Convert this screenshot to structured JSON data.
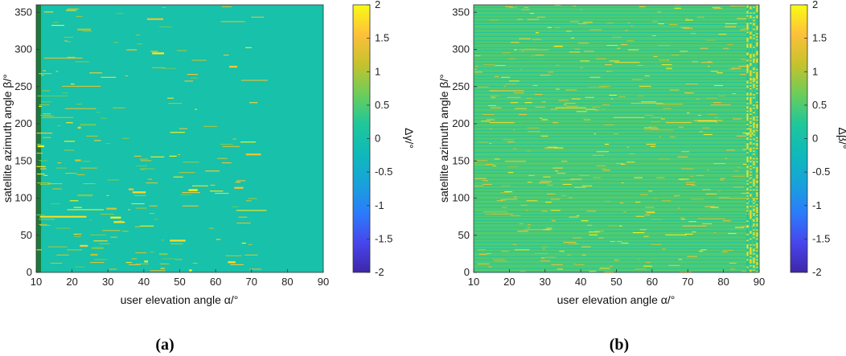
{
  "chart_data": [
    {
      "type": "heatmap",
      "panel_label": "(a)",
      "xlabel": "user elevation angle α/°",
      "ylabel": "satellite azimuth angle β/°",
      "xlim": [
        10,
        90
      ],
      "ylim": [
        0,
        360
      ],
      "xticks": [
        "10",
        "20",
        "30",
        "40",
        "50",
        "60",
        "70",
        "80",
        "90"
      ],
      "yticks": [
        "0",
        "50",
        "100",
        "150",
        "200",
        "250",
        "300",
        "350"
      ],
      "colorbar": {
        "label": "Δγ/°",
        "range": [
          -2,
          2
        ],
        "ticks": [
          "-2",
          "-1.5",
          "-1",
          "-0.5",
          "0",
          "0.5",
          "1",
          "1.5",
          "2"
        ]
      },
      "background_value": 0,
      "edge_column": {
        "x": 10,
        "value": 0.5
      },
      "scatter_value_range": [
        0.5,
        2
      ],
      "scatter_x_extent": [
        10,
        72
      ],
      "colormap": "parula"
    },
    {
      "type": "heatmap",
      "panel_label": "(b)",
      "xlabel": "user elevation angle α/°",
      "ylabel": "satellite azimuth angle β/°",
      "xlim": [
        10,
        90
      ],
      "ylim": [
        0,
        360
      ],
      "xticks": [
        "10",
        "20",
        "30",
        "40",
        "50",
        "60",
        "70",
        "80",
        "90"
      ],
      "yticks": [
        "0",
        "50",
        "100",
        "150",
        "200",
        "250",
        "300",
        "350"
      ],
      "colorbar": {
        "label": "Δβ/°",
        "range": [
          -2,
          2
        ],
        "ticks": [
          "-2",
          "-1.5",
          "-1",
          "-0.5",
          "0",
          "0.5",
          "1",
          "1.5",
          "2"
        ]
      },
      "background_value": 0.5,
      "stripe_value": 0,
      "scatter_value_range": [
        0.5,
        2
      ],
      "scatter_x_extent": [
        10,
        90
      ],
      "dense_x_range": [
        86,
        90
      ],
      "colormap": "parula"
    }
  ],
  "colors": {
    "parula": [
      "#3e26a8",
      "#4746ec",
      "#2b7cfb",
      "#17a3d9",
      "#0fbab9",
      "#1fc79a",
      "#6ccd5a",
      "#c6c22c",
      "#fdc03a",
      "#f9fb14"
    ],
    "edge_green": "#1a7a3a"
  }
}
